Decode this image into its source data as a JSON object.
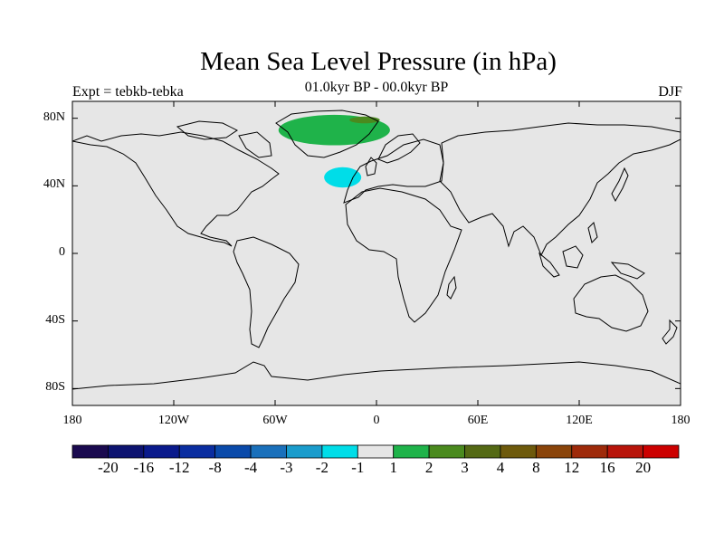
{
  "title": "Mean Sea Level Pressure (in hPa)",
  "expt_label": "Expt = tebkb-tebka",
  "period_label": "01.0kyr BP - 00.0kyr BP",
  "season_label": "DJF",
  "map": {
    "projection": "cylindrical-equidistant",
    "lon_range": [
      -180,
      180
    ],
    "lat_range": [
      -90,
      90
    ],
    "background_color": "#e6e6e6",
    "coastline_color": "#000000",
    "lat_ticks": [
      {
        "value": 80,
        "label": "80N"
      },
      {
        "value": 40,
        "label": "40N"
      },
      {
        "value": 0,
        "label": "0"
      },
      {
        "value": -40,
        "label": "40S"
      },
      {
        "value": -80,
        "label": "80S"
      }
    ],
    "lon_ticks": [
      {
        "value": -180,
        "label": "180"
      },
      {
        "value": -120,
        "label": "120W"
      },
      {
        "value": -60,
        "label": "60W"
      },
      {
        "value": 0,
        "label": "0"
      },
      {
        "value": 60,
        "label": "60E"
      },
      {
        "value": 120,
        "label": "120E"
      },
      {
        "value": 180,
        "label": "180"
      }
    ],
    "anomaly_regions": [
      {
        "name": "greenland-positive-anomaly",
        "level": "1 to 2",
        "color": "#1fb34a",
        "lon_center": -25,
        "lat_center": 73,
        "lon_halfwidth": 33,
        "lat_halfwidth": 9
      },
      {
        "name": "greenland-sea-positive-anomaly",
        "level": "2 to 3",
        "color": "#4a8a1e",
        "lon_center": -7,
        "lat_center": 79,
        "lon_halfwidth": 9,
        "lat_halfwidth": 2
      },
      {
        "name": "north-atlantic-negative-anomaly",
        "level": "-2 to -1",
        "color": "#00dde8",
        "lon_center": -20,
        "lat_center": 45,
        "lon_halfwidth": 11,
        "lat_halfwidth": 6
      }
    ]
  },
  "colorbar": {
    "colors": [
      "#1a0a4f",
      "#0d1370",
      "#0a1a8c",
      "#0a2da0",
      "#0a4aaa",
      "#1a70bb",
      "#1a9ccc",
      "#00dde8",
      "#e6e6e6",
      "#1fb34a",
      "#4a8a1e",
      "#546914",
      "#6e5a0c",
      "#8a440a",
      "#9e2a0a",
      "#b8140a",
      "#cc0000"
    ],
    "labels": [
      "-20",
      "-16",
      "-12",
      "-8",
      "-4",
      "-3",
      "-2",
      "-1",
      "1",
      "2",
      "3",
      "4",
      "8",
      "12",
      "16",
      "20"
    ]
  }
}
